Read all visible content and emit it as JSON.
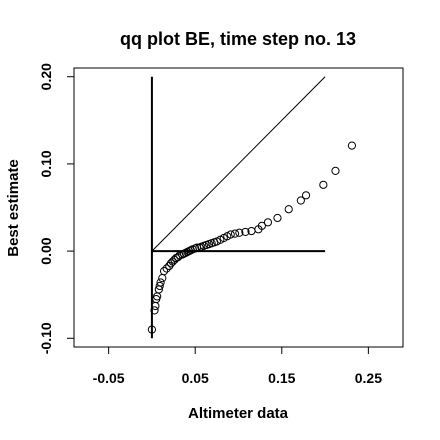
{
  "chart_data": {
    "type": "scatter",
    "title": "qq plot BE, time step no. 13",
    "xlabel": "Altimeter data",
    "ylabel": "Best estimate",
    "xlim": [
      -0.09,
      0.29
    ],
    "ylim": [
      -0.11,
      0.21
    ],
    "x_ticks": [
      {
        "value": -0.05,
        "label": "-0.05"
      },
      {
        "value": 0.05,
        "label": "0.05"
      },
      {
        "value": 0.15,
        "label": "0.15"
      },
      {
        "value": 0.25,
        "label": "0.25"
      }
    ],
    "y_ticks": [
      {
        "value": -0.1,
        "label": "-0.10"
      },
      {
        "value": 0.0,
        "label": "0.00"
      },
      {
        "value": 0.1,
        "label": "0.10"
      },
      {
        "value": 0.2,
        "label": "0.20"
      }
    ],
    "grid": false,
    "point_color": "#000000",
    "marker": "open-circle",
    "reference_lines": [
      {
        "kind": "identity",
        "x": [
          0,
          0.2
        ],
        "y": [
          0,
          0.2
        ]
      },
      {
        "kind": "horizontal",
        "x": [
          0,
          0.2
        ],
        "y": [
          0,
          0
        ]
      },
      {
        "kind": "vertical",
        "x": [
          0,
          0
        ],
        "y": [
          -0.1,
          0.2
        ]
      }
    ],
    "points": [
      {
        "x": 0.0,
        "y": -0.09
      },
      {
        "x": 0.003,
        "y": -0.068
      },
      {
        "x": 0.004,
        "y": -0.063
      },
      {
        "x": 0.005,
        "y": -0.055
      },
      {
        "x": 0.006,
        "y": -0.052
      },
      {
        "x": 0.008,
        "y": -0.044
      },
      {
        "x": 0.009,
        "y": -0.04
      },
      {
        "x": 0.01,
        "y": -0.036
      },
      {
        "x": 0.012,
        "y": -0.031
      },
      {
        "x": 0.014,
        "y": -0.023
      },
      {
        "x": 0.017,
        "y": -0.02
      },
      {
        "x": 0.02,
        "y": -0.017
      },
      {
        "x": 0.022,
        "y": -0.014
      },
      {
        "x": 0.024,
        "y": -0.012
      },
      {
        "x": 0.026,
        "y": -0.01
      },
      {
        "x": 0.028,
        "y": -0.008
      },
      {
        "x": 0.03,
        "y": -0.007
      },
      {
        "x": 0.032,
        "y": -0.005
      },
      {
        "x": 0.035,
        "y": -0.004
      },
      {
        "x": 0.037,
        "y": -0.003
      },
      {
        "x": 0.039,
        "y": -0.002
      },
      {
        "x": 0.041,
        "y": -0.001
      },
      {
        "x": 0.043,
        "y": 0.0
      },
      {
        "x": 0.045,
        "y": 0.001
      },
      {
        "x": 0.047,
        "y": 0.002
      },
      {
        "x": 0.05,
        "y": 0.003
      },
      {
        "x": 0.052,
        "y": 0.004
      },
      {
        "x": 0.055,
        "y": 0.004
      },
      {
        "x": 0.057,
        "y": 0.005
      },
      {
        "x": 0.06,
        "y": 0.006
      },
      {
        "x": 0.063,
        "y": 0.007
      },
      {
        "x": 0.066,
        "y": 0.008
      },
      {
        "x": 0.069,
        "y": 0.009
      },
      {
        "x": 0.072,
        "y": 0.01
      },
      {
        "x": 0.075,
        "y": 0.011
      },
      {
        "x": 0.079,
        "y": 0.013
      },
      {
        "x": 0.083,
        "y": 0.015
      },
      {
        "x": 0.087,
        "y": 0.017
      },
      {
        "x": 0.091,
        "y": 0.019
      },
      {
        "x": 0.096,
        "y": 0.02
      },
      {
        "x": 0.101,
        "y": 0.021
      },
      {
        "x": 0.108,
        "y": 0.022
      },
      {
        "x": 0.115,
        "y": 0.023
      },
      {
        "x": 0.123,
        "y": 0.025
      },
      {
        "x": 0.127,
        "y": 0.029
      },
      {
        "x": 0.134,
        "y": 0.033
      },
      {
        "x": 0.145,
        "y": 0.038
      },
      {
        "x": 0.158,
        "y": 0.048
      },
      {
        "x": 0.172,
        "y": 0.058
      },
      {
        "x": 0.178,
        "y": 0.064
      },
      {
        "x": 0.198,
        "y": 0.076
      },
      {
        "x": 0.212,
        "y": 0.092
      },
      {
        "x": 0.231,
        "y": 0.121
      }
    ]
  }
}
